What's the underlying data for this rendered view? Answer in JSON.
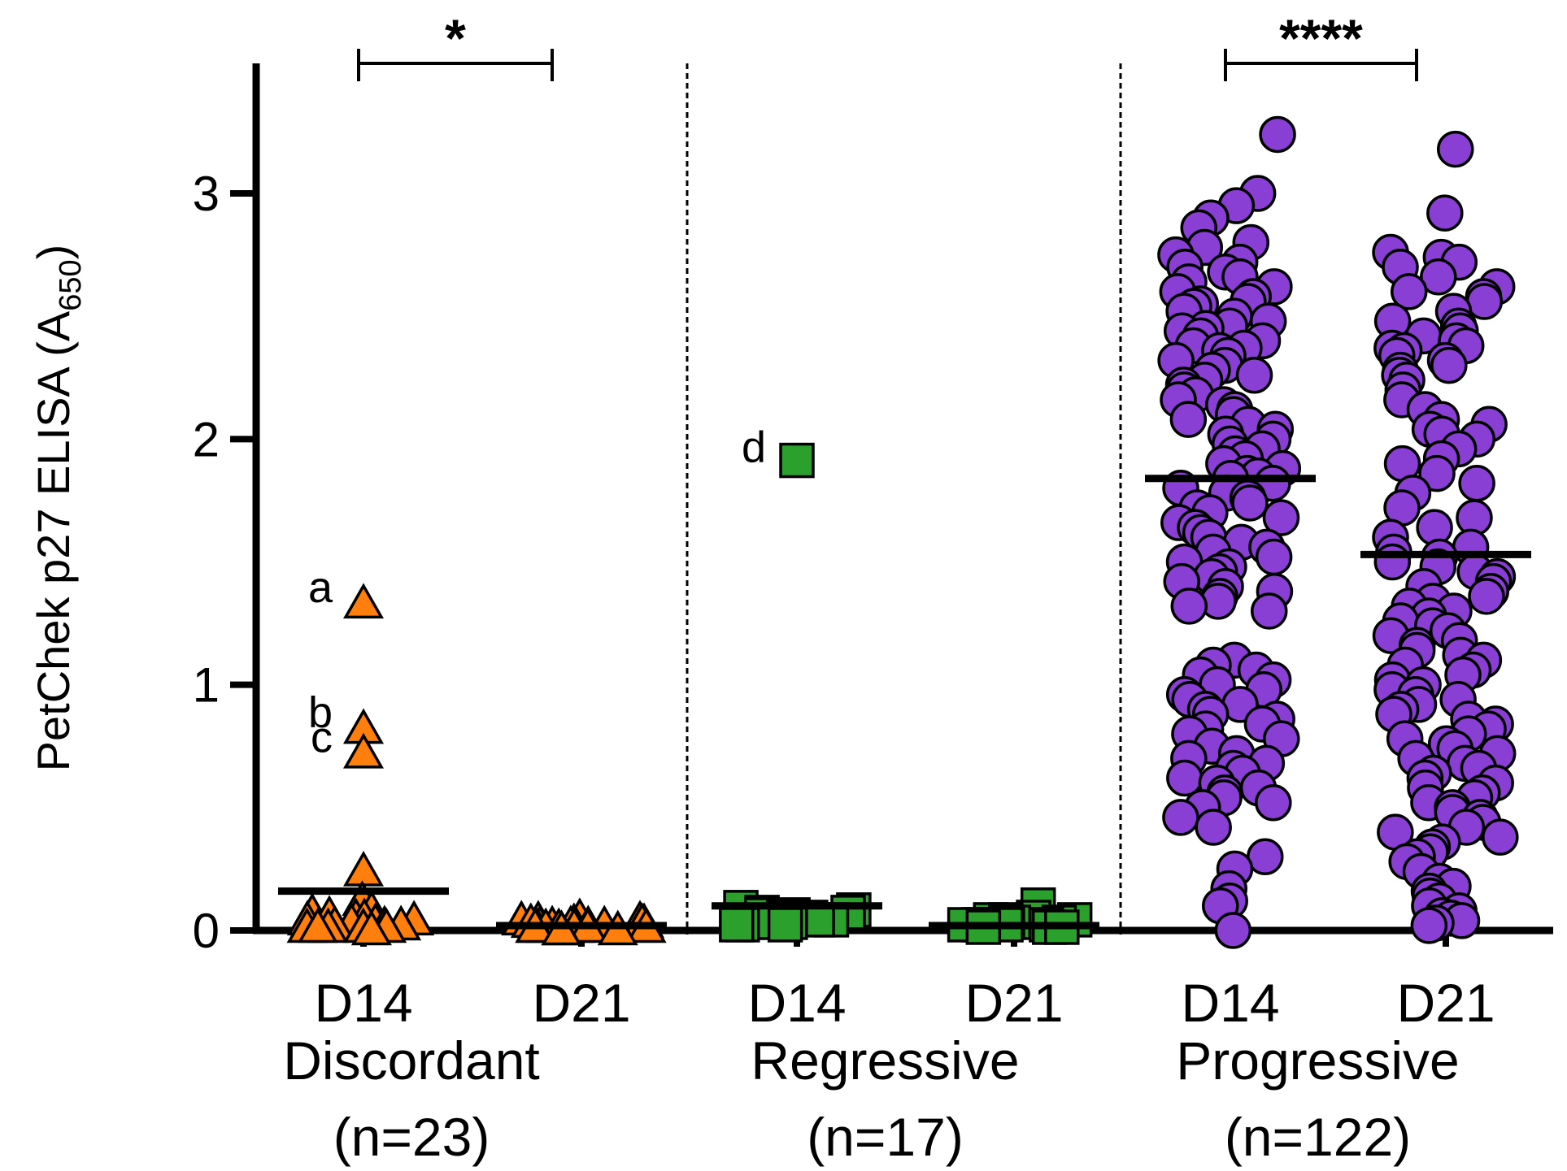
{
  "chart_data": {
    "type": "scatter",
    "ylabel": "PetChek p27 ELISA (A",
    "ylabel_sub": "650",
    "ylabel_close": ")",
    "ylim": [
      0,
      3.5
    ],
    "yticks": [
      "0",
      "1",
      "2",
      "3"
    ],
    "grid": false,
    "groups": [
      {
        "name": "Discordant",
        "count": "(n=23)",
        "marker": "triangle",
        "color": "#ff7f0e",
        "significance": "*",
        "conditions": [
          {
            "label": "D14",
            "mean": 0.16,
            "values": [
              1.33,
              0.82,
              0.72,
              0.24,
              0.12,
              0.08,
              0.07,
              0.06,
              0.05,
              0.05,
              0.04,
              0.04,
              0.03,
              0.03,
              0.02,
              0.02,
              0.02,
              0.01,
              0.01,
              0.01,
              0.01,
              0.01,
              0.0
            ]
          },
          {
            "label": "D21",
            "mean": 0.02,
            "values": [
              0.05,
              0.04,
              0.04,
              0.04,
              0.03,
              0.03,
              0.03,
              0.03,
              0.02,
              0.02,
              0.02,
              0.02,
              0.02,
              0.01,
              0.01,
              0.01,
              0.01,
              0.01,
              0.01,
              0.01,
              0.0,
              0.0,
              0.0
            ]
          }
        ]
      },
      {
        "name": "Regressive",
        "count": "(n=17)",
        "marker": "square",
        "color": "#2ca02c",
        "significance": "",
        "conditions": [
          {
            "label": "D14",
            "mean": 0.1,
            "values": [
              1.9,
              0.08,
              0.07,
              0.06,
              0.06,
              0.05,
              0.05,
              0.04,
              0.04,
              0.03,
              0.03,
              0.02,
              0.02,
              0.02,
              0.01,
              0.01,
              0.01
            ]
          },
          {
            "label": "D21",
            "mean": 0.02,
            "values": [
              0.09,
              0.04,
              0.03,
              0.03,
              0.03,
              0.02,
              0.02,
              0.02,
              0.02,
              0.01,
              0.01,
              0.01,
              0.01,
              0.01,
              0.0,
              0.0,
              0.0
            ]
          }
        ]
      },
      {
        "name": "Progressive",
        "count": "(n=122)",
        "marker": "circle",
        "color": "#8a3fd4",
        "significance": "****",
        "conditions": [
          {
            "label": "D14",
            "mean": 1.84,
            "values": [
              3.24,
              3.0,
              2.95,
              2.9,
              2.86,
              2.8,
              2.78,
              2.75,
              2.72,
              2.7,
              2.68,
              2.66,
              2.64,
              2.62,
              2.6,
              2.58,
              2.56,
              2.55,
              2.54,
              2.52,
              2.5,
              2.48,
              2.46,
              2.45,
              2.44,
              2.42,
              2.4,
              2.38,
              2.37,
              2.36,
              2.34,
              2.32,
              2.3,
              2.28,
              2.26,
              2.24,
              2.22,
              2.2,
              2.18,
              2.16,
              2.14,
              2.12,
              2.1,
              2.08,
              2.06,
              2.04,
              2.02,
              2.0,
              1.98,
              1.96,
              1.94,
              1.92,
              1.9,
              1.88,
              1.86,
              1.85,
              1.84,
              1.82,
              1.8,
              1.78,
              1.76,
              1.74,
              1.72,
              1.7,
              1.68,
              1.66,
              1.64,
              1.62,
              1.6,
              1.58,
              1.56,
              1.54,
              1.52,
              1.5,
              1.48,
              1.46,
              1.44,
              1.42,
              1.4,
              1.38,
              1.36,
              1.34,
              1.32,
              1.3,
              1.1,
              1.08,
              1.06,
              1.04,
              1.02,
              1.0,
              0.98,
              0.96,
              0.94,
              0.92,
              0.9,
              0.88,
              0.86,
              0.84,
              0.82,
              0.8,
              0.78,
              0.75,
              0.72,
              0.7,
              0.68,
              0.66,
              0.64,
              0.62,
              0.6,
              0.58,
              0.56,
              0.54,
              0.52,
              0.5,
              0.46,
              0.42,
              0.3,
              0.25,
              0.17,
              0.12,
              0.1,
              0.0
            ]
          },
          {
            "label": "D21",
            "mean": 1.53,
            "values": [
              3.18,
              2.92,
              2.76,
              2.74,
              2.72,
              2.7,
              2.66,
              2.62,
              2.6,
              2.58,
              2.56,
              2.52,
              2.48,
              2.46,
              2.44,
              2.42,
              2.4,
              2.38,
              2.37,
              2.36,
              2.34,
              2.32,
              2.3,
              2.28,
              2.26,
              2.24,
              2.2,
              2.16,
              2.12,
              2.08,
              2.06,
              2.04,
              2.02,
              2.0,
              1.96,
              1.92,
              1.9,
              1.86,
              1.82,
              1.78,
              1.72,
              1.68,
              1.64,
              1.6,
              1.56,
              1.54,
              1.52,
              1.5,
              1.48,
              1.46,
              1.44,
              1.42,
              1.4,
              1.38,
              1.36,
              1.34,
              1.32,
              1.3,
              1.28,
              1.26,
              1.24,
              1.22,
              1.2,
              1.18,
              1.16,
              1.14,
              1.12,
              1.1,
              1.08,
              1.06,
              1.04,
              1.02,
              1.0,
              0.98,
              0.96,
              0.94,
              0.92,
              0.9,
              0.88,
              0.86,
              0.84,
              0.82,
              0.8,
              0.78,
              0.76,
              0.74,
              0.72,
              0.7,
              0.68,
              0.66,
              0.64,
              0.62,
              0.6,
              0.58,
              0.56,
              0.54,
              0.52,
              0.5,
              0.48,
              0.46,
              0.44,
              0.42,
              0.4,
              0.38,
              0.36,
              0.34,
              0.32,
              0.3,
              0.28,
              0.24,
              0.2,
              0.18,
              0.16,
              0.14,
              0.12,
              0.1,
              0.08,
              0.06,
              0.05,
              0.04,
              0.03,
              0.02
            ]
          }
        ]
      }
    ],
    "annotations": [
      {
        "text": "a",
        "group": 0,
        "condition": 0,
        "value": 1.33
      },
      {
        "text": "b",
        "group": 0,
        "condition": 0,
        "value": 0.82
      },
      {
        "text": "c",
        "group": 0,
        "condition": 0,
        "value": 0.72
      },
      {
        "text": "d",
        "group": 1,
        "condition": 0,
        "value": 1.9
      }
    ]
  }
}
